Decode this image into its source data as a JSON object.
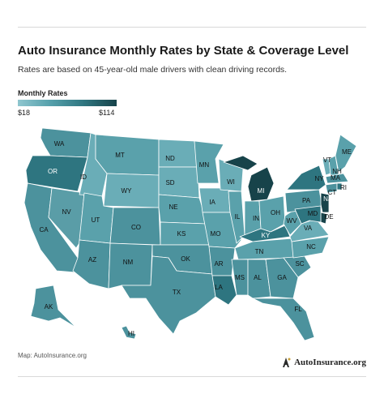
{
  "header": {
    "title": "Auto Insurance Monthly Rates by State & Coverage Level",
    "subtitle": "Rates are based on 45-year-old male drivers with clean driving records."
  },
  "legend": {
    "title": "Monthly Rates",
    "min_label": "$18",
    "max_label": "$114",
    "min_value": 18,
    "max_value": 114,
    "colors": [
      "#8fc6cf",
      "#55a0ab",
      "#2f7680",
      "#17434a"
    ]
  },
  "states": {
    "WA": "WA",
    "OR": "OR",
    "CA": "CA",
    "NV": "NV",
    "ID": "ID",
    "MT": "MT",
    "WY": "WY",
    "UT": "UT",
    "AZ": "AZ",
    "CO": "CO",
    "NM": "NM",
    "ND": "ND",
    "SD": "SD",
    "NE": "NE",
    "KS": "KS",
    "OK": "OK",
    "TX": "TX",
    "MN": "MN",
    "IA": "IA",
    "MO": "MO",
    "AR": "AR",
    "LA": "LA",
    "WI": "WI",
    "IL": "IL",
    "MI": "MI",
    "IN": "IN",
    "OH": "OH",
    "KY": "KY",
    "TN": "TN",
    "MS": "MS",
    "AL": "AL",
    "GA": "GA",
    "FL": "FL",
    "SC": "SC",
    "NC": "NC",
    "VA": "VA",
    "WV": "WV",
    "PA": "PA",
    "NY": "NY",
    "VT": "VT",
    "NH": "NH",
    "ME": "ME",
    "MA": "MA",
    "RI": "RI",
    "CT": "CT",
    "NJ": "NJ",
    "DE": "DE",
    "MD": "MD",
    "AK": "AK",
    "HI": "HI"
  },
  "footer": {
    "source": "Map: AutoInsurance.org",
    "brand": "AutoInsurance.org"
  }
}
